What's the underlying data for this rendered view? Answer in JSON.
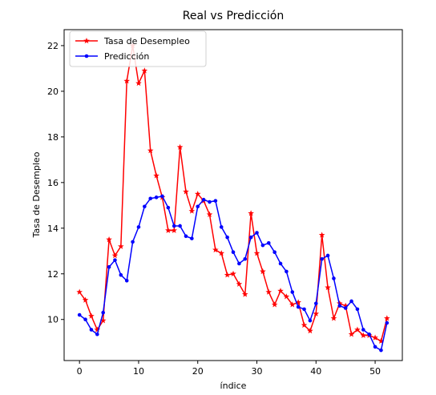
{
  "chart_data": {
    "type": "line",
    "title": "Real vs Predicción",
    "xlabel": "índice",
    "ylabel": "Tasa de Desempleo",
    "xlim": [
      -2.6,
      54.6
    ],
    "ylim": [
      8.2,
      22.7
    ],
    "xticks": [
      0,
      10,
      20,
      30,
      40,
      50
    ],
    "yticks": [
      10,
      12,
      14,
      16,
      18,
      20,
      22
    ],
    "grid": false,
    "legend_position": "top-left",
    "x": [
      0,
      1,
      2,
      3,
      4,
      5,
      6,
      7,
      8,
      9,
      10,
      11,
      12,
      13,
      14,
      15,
      16,
      17,
      18,
      19,
      20,
      21,
      22,
      23,
      24,
      25,
      26,
      27,
      28,
      29,
      30,
      31,
      32,
      33,
      34,
      35,
      36,
      37,
      38,
      39,
      40,
      41,
      42,
      43,
      44,
      45,
      46,
      47,
      48,
      49,
      50,
      51,
      52
    ],
    "series": [
      {
        "name": "Tasa de Desempleo",
        "color": "#ff0000",
        "marker": "star",
        "values": [
          11.2,
          10.85,
          10.15,
          9.55,
          9.95,
          13.5,
          12.8,
          13.2,
          20.45,
          22.0,
          20.35,
          20.9,
          17.4,
          16.3,
          15.35,
          13.9,
          13.9,
          17.55,
          15.6,
          14.75,
          15.5,
          15.2,
          14.6,
          13.05,
          12.9,
          11.95,
          12.0,
          11.55,
          11.1,
          14.65,
          12.9,
          12.1,
          11.2,
          10.65,
          11.25,
          11.0,
          10.65,
          10.75,
          9.75,
          9.5,
          10.25,
          13.7,
          11.4,
          10.05,
          10.7,
          10.6,
          9.35,
          9.55,
          9.3,
          9.3,
          9.2,
          9.05,
          10.05
        ]
      },
      {
        "name": "Predicción",
        "color": "#0000ff",
        "marker": "dot",
        "values": [
          10.2,
          10.0,
          9.55,
          9.35,
          10.3,
          12.3,
          12.6,
          11.95,
          11.7,
          13.4,
          14.05,
          14.95,
          15.3,
          15.35,
          15.4,
          14.9,
          14.1,
          14.1,
          13.65,
          13.55,
          14.95,
          15.25,
          15.15,
          15.2,
          14.05,
          13.6,
          12.95,
          12.45,
          12.65,
          13.6,
          13.8,
          13.25,
          13.35,
          12.95,
          12.45,
          12.1,
          11.2,
          10.55,
          10.45,
          9.95,
          10.7,
          12.65,
          12.8,
          11.8,
          10.6,
          10.5,
          10.8,
          10.45,
          9.55,
          9.35,
          8.8,
          8.65,
          9.85
        ]
      }
    ]
  }
}
